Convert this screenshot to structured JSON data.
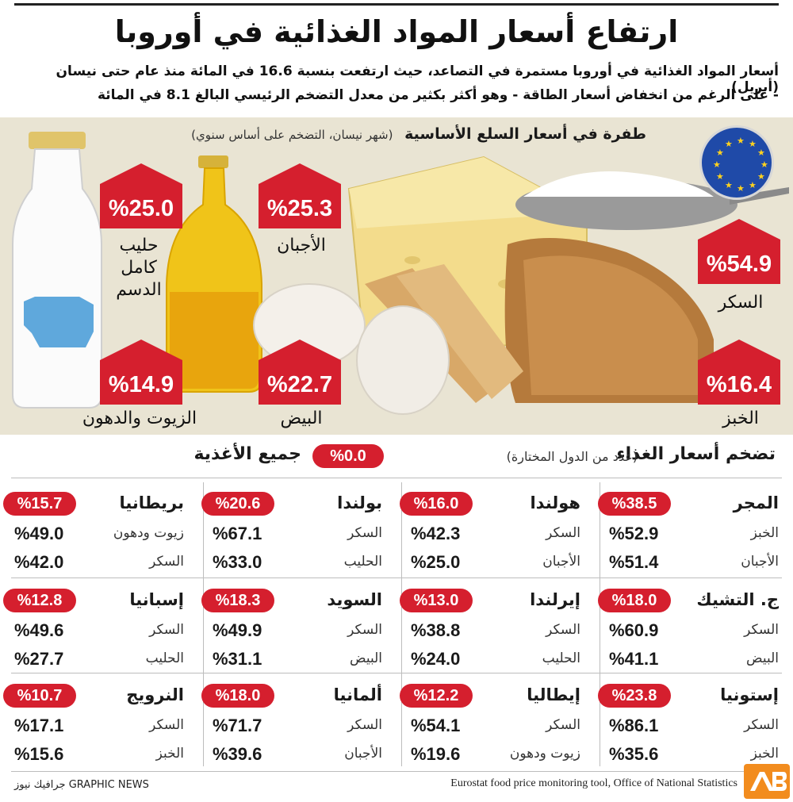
{
  "title": "ارتفاع أسعار المواد الغذائية في أوروبا",
  "subtitle_line1": "أسعار المواد الغذائية في أوروبا مستمرة في التصاعد، حيث ارتفعت بنسبة 16.6 في المائة منذ عام حتى نيسان (أبريل)",
  "subtitle_line2": "- على الرغم من انخفاض أسعار الطاقة - وهو أكثر بكثير من معدل التضخم الرئيسي البالغ 8.1 في المائة",
  "colors": {
    "accent": "#d51f2e",
    "hero_bg": "#e9e4d3",
    "eu_blue": "#1f4aa8",
    "eu_star": "#ffd21f"
  },
  "hero": {
    "heading": "طفرة في أسعار السلع الأساسية",
    "note": "(شهر نيسان، التضخم على أساس سنوي)",
    "flag_icon": "eu-flag-icon"
  },
  "chart_data": [
    {
      "type": "bar",
      "title": "طفرة في أسعار السلع الأساسية",
      "subtitle": "(شهر نيسان، التضخم على أساس سنوي)",
      "categories": [
        "حليب كامل الدسم",
        "الأجبان",
        "السكر",
        "الزيوت والدهون",
        "البيض",
        "الخبز"
      ],
      "values": [
        25.0,
        25.3,
        54.9,
        14.9,
        22.7,
        16.4
      ],
      "labels": [
        "%25.0",
        "%25.3",
        "%54.9",
        "%14.9",
        "%22.7",
        "%16.4"
      ]
    },
    {
      "type": "table",
      "title": "تضخم أسعار الغذاء",
      "subtitle": "(عدد من الدول المختارة)",
      "columns": [
        "country",
        "all_food",
        "item1",
        "item1_value",
        "item2",
        "item2_value"
      ],
      "rows": [
        [
          "المجر",
          38.5,
          "الخبز",
          52.9,
          "الأجبان",
          51.4
        ],
        [
          "ج. التشيك",
          18.0,
          "السكر",
          60.9,
          "البيض",
          41.1
        ],
        [
          "إستونيا",
          23.8,
          "السكر",
          86.1,
          "الخبز",
          35.6
        ],
        [
          "هولندا",
          16.0,
          "السكر",
          42.3,
          "الأجبان",
          25.0
        ],
        [
          "إيرلندا",
          13.0,
          "السكر",
          38.8,
          "الحليب",
          24.0
        ],
        [
          "إيطاليا",
          12.2,
          "السكر",
          54.1,
          "زيوت ودهون",
          19.6
        ],
        [
          "بولندا",
          20.6,
          "السكر",
          67.1,
          "الحليب",
          33.0
        ],
        [
          "السويد",
          18.3,
          "السكر",
          49.9,
          "البيض",
          31.1
        ],
        [
          "ألمانيا",
          18.0,
          "السكر",
          71.7,
          "الأجبان",
          39.6
        ],
        [
          "بريطانيا",
          15.7,
          "زيوت ودهون",
          49.0,
          "السكر",
          42.0
        ],
        [
          "إسبانيا",
          12.8,
          "السكر",
          49.6,
          "الحليب",
          27.7
        ],
        [
          "النرويج",
          10.7,
          "السكر",
          17.1,
          "الخبز",
          15.6
        ]
      ]
    }
  ],
  "badges": [
    {
      "value": "%25.0",
      "label": "حليب\nكامل\nالدسم"
    },
    {
      "value": "%25.3",
      "label": "الأجبان"
    },
    {
      "value": "%54.9",
      "label": "السكر"
    },
    {
      "value": "%14.9",
      "label": "الزيوت والدهون"
    },
    {
      "value": "%22.7",
      "label": "البيض"
    },
    {
      "value": "%16.4",
      "label": "الخبز"
    }
  ],
  "table": {
    "heading": "تضخم أسعار الغذاء",
    "note": "(عدد من الدول المختارة)",
    "all_food_label": "جميع الأغذية",
    "all_food_value": "%0.0",
    "cells": [
      {
        "country": "المجر",
        "total": "%38.5",
        "n1": "الخبز",
        "v1": "%52.9",
        "n2": "الأجبان",
        "v2": "%51.4"
      },
      {
        "country": "ج. التشيك",
        "total": "%18.0",
        "n1": "السكر",
        "v1": "%60.9",
        "n2": "البيض",
        "v2": "%41.1"
      },
      {
        "country": "إستونيا",
        "total": "%23.8",
        "n1": "السكر",
        "v1": "%86.1",
        "n2": "الخبز",
        "v2": "%35.6"
      },
      {
        "country": "هولندا",
        "total": "%16.0",
        "n1": "السكر",
        "v1": "%42.3",
        "n2": "الأجبان",
        "v2": "%25.0"
      },
      {
        "country": "إيرلندا",
        "total": "%13.0",
        "n1": "السكر",
        "v1": "%38.8",
        "n2": "الحليب",
        "v2": "%24.0"
      },
      {
        "country": "إيطاليا",
        "total": "%12.2",
        "n1": "السكر",
        "v1": "%54.1",
        "n2": "زيوت ودهون",
        "v2": "%19.6"
      },
      {
        "country": "بولندا",
        "total": "%20.6",
        "n1": "السكر",
        "v1": "%67.1",
        "n2": "الحليب",
        "v2": "%33.0"
      },
      {
        "country": "السويد",
        "total": "%18.3",
        "n1": "السكر",
        "v1": "%49.9",
        "n2": "البيض",
        "v2": "%31.1"
      },
      {
        "country": "ألمانيا",
        "total": "%18.0",
        "n1": "السكر",
        "v1": "%71.7",
        "n2": "الأجبان",
        "v2": "%39.6"
      },
      {
        "country": "بريطانيا",
        "total": "%15.7",
        "n1": "زيوت ودهون",
        "v1": "%49.0",
        "n2": "السكر",
        "v2": "%42.0"
      },
      {
        "country": "إسبانيا",
        "total": "%12.8",
        "n1": "السكر",
        "v1": "%49.6",
        "n2": "الحليب",
        "v2": "%27.7"
      },
      {
        "country": "النرويج",
        "total": "%10.7",
        "n1": "السكر",
        "v1": "%17.1",
        "n2": "الخبز",
        "v2": "%15.6"
      }
    ]
  },
  "footer": {
    "credit": "GRAPHIC NEWS جرافيك نيوز",
    "source": "Eurostat food price monitoring tool, Office of National Statistics",
    "logo_icon": "publisher-logo-icon"
  }
}
